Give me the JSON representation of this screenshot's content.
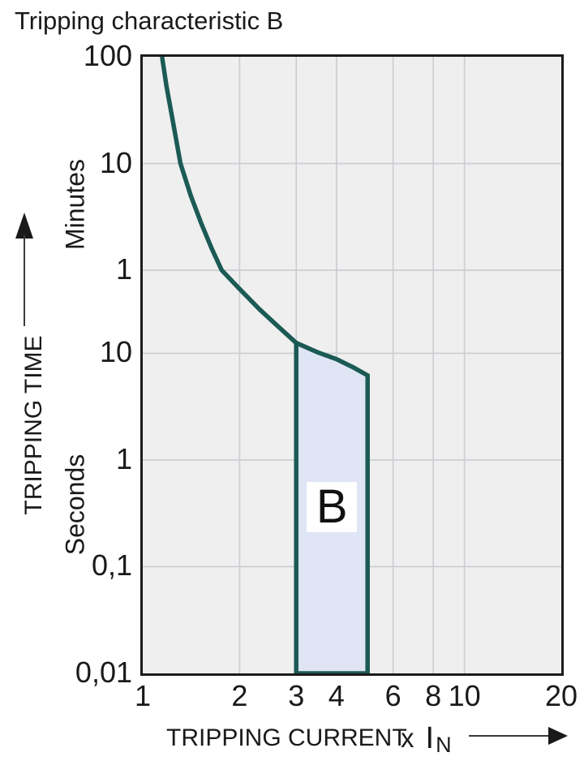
{
  "title": "Tripping characteristic B",
  "colors": {
    "text": "#1a1a1a",
    "plot_bg": "#efefef",
    "grid": "#c9ccd1",
    "border": "#1b1b1b",
    "curve": "#1b5a55",
    "band_fill": "#dfe5f4",
    "band_label_bg": "#ffffff"
  },
  "chart_data": {
    "type": "line",
    "title": "Tripping characteristic B",
    "scale": "log-log",
    "grid": "on",
    "x_axis": {
      "label": "TRIPPING CURRENT",
      "multiplier": "x",
      "symbol": "I",
      "subscript": "N",
      "min": 1,
      "max": 20,
      "ticks": [
        {
          "label": "1",
          "value": 1
        },
        {
          "label": "2",
          "value": 2
        },
        {
          "label": "3",
          "value": 3
        },
        {
          "label": "4",
          "value": 4
        },
        {
          "label": "6",
          "value": 6
        },
        {
          "label": "8",
          "value": 8
        },
        {
          "label": "10",
          "value": 10
        },
        {
          "label": "20",
          "value": 20
        }
      ],
      "gridlines": [
        2,
        3,
        4,
        6,
        8,
        10
      ]
    },
    "y_axis": {
      "label": "TRIPPING TIME",
      "units": [
        "Minutes",
        "Seconds"
      ],
      "min_seconds": 0.01,
      "max_seconds": 6000,
      "minute_ticks": [
        {
          "label": "100",
          "seconds": 6000
        },
        {
          "label": "10",
          "seconds": 600
        },
        {
          "label": "1",
          "seconds": 60
        }
      ],
      "second_ticks": [
        {
          "label": "10",
          "seconds": 10
        },
        {
          "label": "1",
          "seconds": 1
        },
        {
          "label": "0,1",
          "seconds": 0.1
        },
        {
          "label": "0,01",
          "seconds": 0.01
        }
      ],
      "gridlines_seconds": [
        600,
        60,
        10,
        1,
        0.1
      ]
    },
    "curve_points": [
      {
        "x": 1.148,
        "t": 6000
      },
      {
        "x": 1.185,
        "t": 3200
      },
      {
        "x": 1.235,
        "t": 1600
      },
      {
        "x": 1.31,
        "t": 600
      },
      {
        "x": 1.41,
        "t": 300
      },
      {
        "x": 1.52,
        "t": 165
      },
      {
        "x": 1.64,
        "t": 95
      },
      {
        "x": 1.76,
        "t": 60
      },
      {
        "x": 2.0,
        "t": 40
      },
      {
        "x": 2.3,
        "t": 26
      },
      {
        "x": 2.6,
        "t": 18.5
      },
      {
        "x": 3.0,
        "t": 12.5
      }
    ],
    "band": {
      "label": "B",
      "x_min": 3,
      "x_max": 5,
      "bottom_seconds": 0.01,
      "top_points": [
        {
          "x": 3.0,
          "t": 12.5
        },
        {
          "x": 3.5,
          "t": 10.2
        },
        {
          "x": 4.0,
          "t": 8.8
        },
        {
          "x": 4.5,
          "t": 7.4
        },
        {
          "x": 5.0,
          "t": 6.2
        }
      ]
    }
  }
}
